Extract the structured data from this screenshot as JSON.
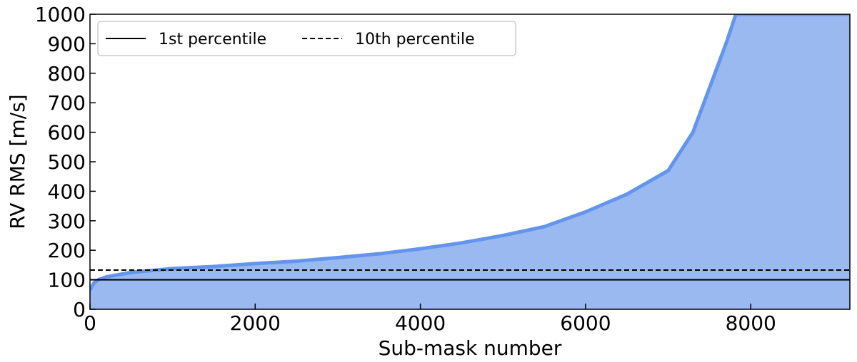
{
  "chart_data": {
    "type": "area",
    "x_label": "Sub-mask number",
    "y_label": "RV RMS [m/s]",
    "x": [
      0,
      50,
      100,
      200,
      500,
      1000,
      1500,
      2000,
      2500,
      3000,
      3500,
      4000,
      4500,
      5000,
      5500,
      6000,
      6500,
      7000,
      7300,
      7500,
      7700,
      7820,
      9200
    ],
    "values": [
      65,
      90,
      100,
      110,
      125,
      138,
      145,
      155,
      163,
      175,
      188,
      205,
      225,
      250,
      280,
      330,
      390,
      470,
      600,
      750,
      900,
      1000,
      1000
    ],
    "color": "#99b9f0",
    "edge_color": "#6495ed",
    "hlines": [
      {
        "name": "1st percentile",
        "value": 100,
        "color": "#000000",
        "dash": "solid"
      },
      {
        "name": "10th percentile",
        "value": 133,
        "color": "#000000",
        "dash": "dashed"
      }
    ],
    "xlim": [
      0,
      9200
    ],
    "ylim": [
      0,
      1000
    ],
    "xticks": [
      0,
      2000,
      4000,
      6000,
      8000
    ],
    "yticks": [
      0,
      100,
      200,
      300,
      400,
      500,
      600,
      700,
      800,
      900,
      1000
    ],
    "legend": "upper left"
  }
}
